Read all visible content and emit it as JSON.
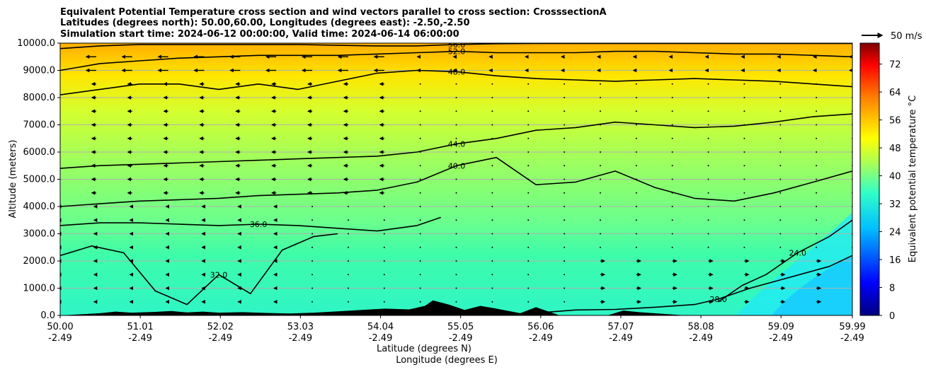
{
  "chart_data": {
    "type": "contourf",
    "title_lines": [
      "Equivalent Potential Temperature cross section and wind vectors parallel to cross section: CrosssectionA",
      "Latitudes (degrees north): 50.00,60.00, Longitudes (degrees east): -2.50,-2.50",
      "Simulation start time: 2024-06-12 00:00:00, Valid time: 2024-06-14 06:00:00"
    ],
    "xlabel_lines": [
      "Latitude (degrees N)",
      "Longitude (degrees E)"
    ],
    "ylabel": "Altitude (meters)",
    "x_ticks": [
      {
        "lat": "50.00",
        "lon": "-2.49",
        "v": 50.0
      },
      {
        "lat": "51.01",
        "lon": "-2.49",
        "v": 51.01
      },
      {
        "lat": "52.02",
        "lon": "-2.49",
        "v": 52.02
      },
      {
        "lat": "53.03",
        "lon": "-2.49",
        "v": 53.03
      },
      {
        "lat": "54.04",
        "lon": "-2.49",
        "v": 54.04
      },
      {
        "lat": "55.05",
        "lon": "-2.49",
        "v": 55.05
      },
      {
        "lat": "56.06",
        "lon": "-2.49",
        "v": 56.06
      },
      {
        "lat": "57.07",
        "lon": "-2.49",
        "v": 57.07
      },
      {
        "lat": "58.08",
        "lon": "-2.49",
        "v": 58.08
      },
      {
        "lat": "59.09",
        "lon": "-2.49",
        "v": 59.09
      },
      {
        "lat": "59.99",
        "lon": "-2.49",
        "v": 59.99
      }
    ],
    "xlim": [
      50.0,
      59.99
    ],
    "y_ticks": [
      "0.0",
      "1000.0",
      "2000.0",
      "3000.0",
      "4000.0",
      "5000.0",
      "6000.0",
      "7000.0",
      "8000.0",
      "9000.0",
      "10000.0"
    ],
    "ylim": [
      0,
      10000
    ],
    "colorbar": {
      "label": "Equivalent potential temperature °C",
      "ticks": [
        "0",
        "8",
        "16",
        "24",
        "32",
        "40",
        "48",
        "56",
        "64",
        "72"
      ],
      "range": [
        0,
        78
      ]
    },
    "quiver_key": "50 m/s",
    "contours": [
      {
        "level": 24,
        "label": "24.0",
        "x": [
          58.3,
          58.6,
          58.9,
          59.1,
          59.3,
          59.5,
          59.7,
          59.99
        ],
        "y": [
          500,
          1100,
          1500,
          1900,
          2300,
          2600,
          2900,
          3500
        ]
      },
      {
        "level": 28,
        "label": "28.0",
        "x": [
          56.06,
          56.5,
          57.0,
          57.5,
          58.0,
          58.3,
          58.7,
          59.2,
          59.7,
          59.99
        ],
        "y": [
          100,
          200,
          220,
          300,
          400,
          600,
          1000,
          1400,
          1800,
          2200
        ]
      },
      {
        "level": 32,
        "label": "32.0",
        "x": [
          50.0,
          50.4,
          50.8,
          51.2,
          51.6,
          52.0,
          52.4,
          52.8,
          53.2,
          53.5
        ],
        "y": [
          2200,
          2550,
          2300,
          900,
          400,
          1500,
          800,
          2400,
          2900,
          3000
        ]
      },
      {
        "level": 36,
        "label": "36.0",
        "x": [
          50.0,
          50.5,
          51.0,
          51.5,
          52.0,
          52.5,
          53.0,
          53.5,
          54.0,
          54.5,
          54.8
        ],
        "y": [
          3300,
          3400,
          3400,
          3350,
          3300,
          3350,
          3300,
          3200,
          3100,
          3300,
          3600
        ]
      },
      {
        "level": 40,
        "label": "40.0",
        "x": [
          50.0,
          50.5,
          51.0,
          51.5,
          52.0,
          52.5,
          53.0,
          53.5,
          54.0,
          54.5,
          55.0,
          55.5,
          56.0,
          56.5,
          57.0,
          57.5,
          58.0,
          58.5,
          59.0,
          59.5,
          59.99
        ],
        "y": [
          4000,
          4100,
          4200,
          4250,
          4300,
          4400,
          4450,
          4500,
          4600,
          4900,
          5500,
          5800,
          4800,
          4900,
          5300,
          4700,
          4300,
          4200,
          4500,
          4900,
          5300
        ]
      },
      {
        "level": 44,
        "label": "44.0",
        "x": [
          50.0,
          50.5,
          51.0,
          51.5,
          52.0,
          52.5,
          53.0,
          53.5,
          54.0,
          54.5,
          55.0,
          55.5,
          56.0,
          56.5,
          57.0,
          57.5,
          58.0,
          58.5,
          59.0,
          59.5,
          59.99
        ],
        "y": [
          5400,
          5500,
          5550,
          5600,
          5650,
          5700,
          5750,
          5800,
          5850,
          6000,
          6300,
          6500,
          6800,
          6900,
          7100,
          7000,
          6900,
          6950,
          7100,
          7300,
          7400
        ]
      },
      {
        "level": 48,
        "label": "48.0",
        "x": [
          50.0,
          50.5,
          51.0,
          51.5,
          52.0,
          52.5,
          53.0,
          53.5,
          54.0,
          54.5,
          55.0,
          55.5,
          56.0,
          56.5,
          57.0,
          57.5,
          58.0,
          58.5,
          59.0,
          59.5,
          59.99
        ],
        "y": [
          8100,
          8300,
          8500,
          8500,
          8300,
          8500,
          8300,
          8600,
          8900,
          9000,
          8950,
          8800,
          8700,
          8650,
          8600,
          8650,
          8700,
          8650,
          8600,
          8500,
          8400
        ]
      },
      {
        "level": 52,
        "label": "52.0",
        "x": [
          50.0,
          50.5,
          51.0,
          51.5,
          52.0,
          52.5,
          53.0,
          53.5,
          54.0,
          54.5,
          55.0,
          55.5,
          56.0,
          56.5,
          57.0,
          57.5,
          58.0,
          58.5,
          59.0,
          59.5,
          59.99
        ],
        "y": [
          9000,
          9250,
          9350,
          9450,
          9500,
          9550,
          9550,
          9550,
          9600,
          9650,
          9700,
          9650,
          9650,
          9650,
          9700,
          9700,
          9650,
          9600,
          9600,
          9550,
          9500
        ]
      },
      {
        "level": 56,
        "label": "56.0",
        "x": [
          50.0,
          50.5,
          51.0,
          51.5,
          52.0,
          52.5,
          53.0,
          53.5,
          54.0,
          54.5,
          55.0,
          55.5,
          56.0,
          56.5,
          57.0,
          57.5,
          58.0,
          58.5,
          59.0,
          59.5,
          59.99
        ],
        "y": [
          9800,
          9900,
          9950,
          9950,
          9950,
          9950,
          9950,
          9920,
          9900,
          9900,
          9950,
          9980,
          9990,
          9990,
          9990,
          9990,
          9990,
          9990,
          9990,
          9990,
          9990
        ]
      }
    ],
    "terrain_m": {
      "x": [
        50.0,
        50.5,
        50.7,
        50.9,
        51.2,
        51.4,
        51.6,
        51.8,
        52.0,
        52.3,
        52.6,
        52.9,
        53.2,
        53.5,
        53.8,
        54.1,
        54.4,
        54.6,
        54.7,
        54.9,
        55.1,
        55.3,
        55.5,
        55.8,
        56.0,
        56.1,
        56.3,
        56.6,
        56.9,
        57.1,
        57.3,
        57.6,
        57.9,
        58.2,
        59.0,
        59.99
      ],
      "y": [
        0,
        80,
        140,
        100,
        130,
        160,
        110,
        140,
        100,
        120,
        90,
        70,
        100,
        150,
        200,
        250,
        220,
        350,
        550,
        400,
        200,
        350,
        250,
        80,
        300,
        200,
        0,
        0,
        0,
        180,
        120,
        60,
        0,
        0,
        0,
        0
      ]
    }
  }
}
